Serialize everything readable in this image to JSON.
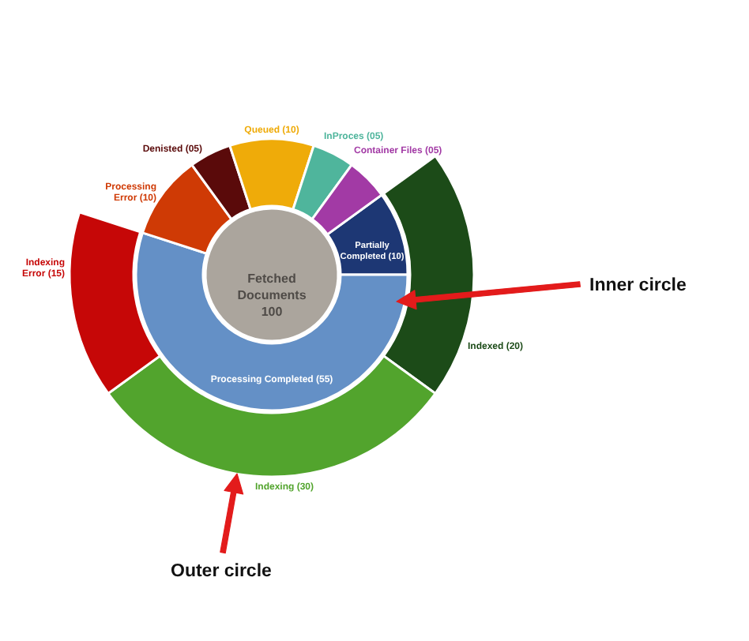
{
  "chart_data": [
    {
      "type": "pie",
      "categories": [
        "Fetched\nDocuments\n100"
      ],
      "values": [
        100
      ],
      "colors": [
        "#aba59d"
      ]
    },
    {
      "type": "donut",
      "categories": [
        "Partially\nCompleted (10)",
        "Processing Completed (55)",
        "Processing\nError (10)",
        "Denisted (05)",
        "Queued (10)",
        "InProces (05)",
        "Container Files (05)"
      ],
      "values": [
        10,
        55,
        10,
        5,
        10,
        5,
        5
      ],
      "colors": [
        "#1d3774",
        "#6490c6",
        "#cf3a05",
        "#5a0a0a",
        "#efab09",
        "#4fb59c",
        "#a23aa5"
      ],
      "annotations": [
        "Inner circle"
      ]
    },
    {
      "type": "donut",
      "categories": [
        "Indexed (20)",
        "Indexing (30)",
        "Indexing\nError (15)"
      ],
      "values": [
        20,
        30,
        15
      ],
      "colors": [
        "#1c4b18",
        "#52a42d",
        "#c60707"
      ],
      "annotations": [
        "Outer circle"
      ]
    }
  ]
}
